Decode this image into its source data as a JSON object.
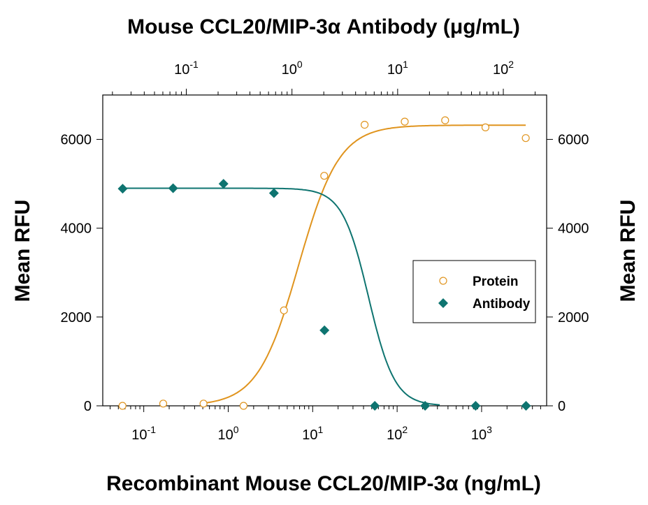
{
  "chart_data": {
    "type": "scatter",
    "title": "",
    "top_axis": {
      "label": "Mouse CCL20/MIP-3α Antibody (μg/mL)",
      "scale": "log",
      "range": [
        0.0162,
        257
      ],
      "tick_labels": [
        "10-1",
        "100",
        "101",
        "102"
      ],
      "tick_values": [
        0.1,
        1,
        10,
        100
      ]
    },
    "bottom_axis": {
      "label": "Recombinant Mouse CCL20/MIP-3α (ng/mL)",
      "scale": "log",
      "range": [
        0.0327,
        5890
      ],
      "tick_labels": [
        "10-1",
        "100",
        "101",
        "102",
        "103"
      ],
      "tick_values": [
        0.1,
        1,
        10,
        100,
        1000
      ]
    },
    "left_axis": {
      "label": "Mean RFU",
      "range": [
        0,
        7000
      ],
      "ticks": [
        0,
        2000,
        4000,
        6000
      ]
    },
    "right_axis": {
      "label": "Mean RFU",
      "range": [
        0,
        7000
      ],
      "ticks": [
        0,
        2000,
        4000,
        6000
      ]
    },
    "grid": false,
    "legend": {
      "placement": "right",
      "entries": [
        "Protein",
        "Antibody"
      ]
    },
    "series": [
      {
        "name": "Protein",
        "axis": "bottom",
        "marker": "open-circle",
        "color": "#E0941E",
        "x": [
          0.056,
          0.17,
          0.51,
          1.52,
          4.57,
          13.7,
          41.2,
          123,
          370,
          1111,
          3333
        ],
        "y": [
          0,
          50,
          50,
          0,
          2150,
          5180,
          6330,
          6400,
          6430,
          6270,
          6030
        ],
        "fit": {
          "bottom": 0,
          "top": 6320,
          "ec50": 6.8,
          "hill": 1.8
        }
      },
      {
        "name": "Antibody",
        "axis": "top",
        "marker": "filled-diamond",
        "color": "#0E7470",
        "x": [
          0.025,
          0.075,
          0.225,
          0.675,
          2.03,
          6.08,
          18.2,
          54.7,
          164
        ],
        "y": [
          4890,
          4900,
          5000,
          4790,
          1700,
          0,
          0,
          0,
          0
        ],
        "fit": {
          "bottom": 0,
          "top": 4900,
          "ic50": 5.3,
          "hill": 3.5
        }
      }
    ]
  }
}
